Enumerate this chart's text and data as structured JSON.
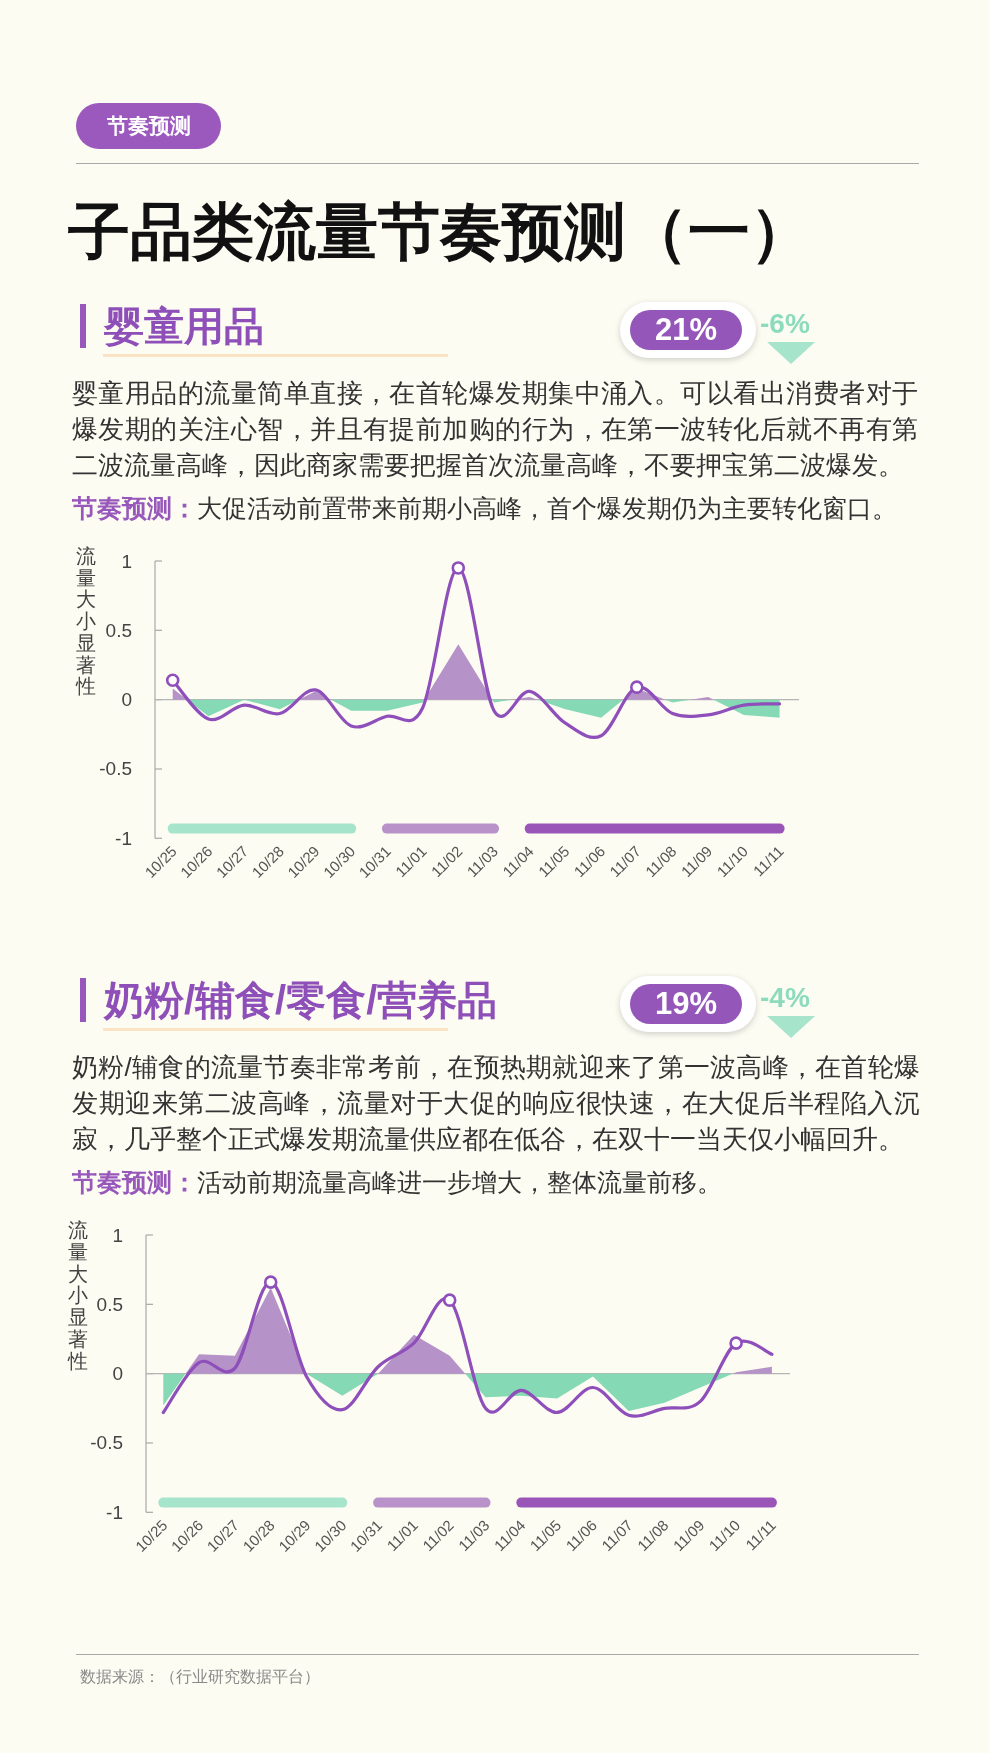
{
  "chart_data": [
    {
      "type": "other",
      "title": "子品类流量节奏预测（一）",
      "annotations": [
        "节奏预测"
      ]
    },
    {
      "type": "line",
      "title": "婴童用品",
      "subtitle": "婴童用品的流量简单直接，在首轮爆发期集中涌入。可以看出消费者对于爆发期的关注心智，并且有提前加购的行为，在第一波转化后就不再有第二波流量高峰，因此商家需要把握首次流量高峰，不要押宝第二波爆发。",
      "ylabel": "流量大小显著性",
      "annotations": [
        "21%",
        "-6%",
        "节奏预测：",
        "大促活动前置带来前期小高峰，首个爆发期仍为主要转化窗口。"
      ],
      "categories": [
        "10/25",
        "10/26",
        "10/27",
        "10/28",
        "10/29",
        "10/30",
        "10/31",
        "11/01",
        "11/02",
        "11/03",
        "11/04",
        "11/05",
        "11/06",
        "11/07",
        "11/08",
        "11/09",
        "11/10",
        "11/11"
      ],
      "series": [
        {
          "type": "area",
          "colors": [
            "#b592c8",
            "#85d9b5",
            "#85d9b5",
            "#85d9b5",
            "#b592c8",
            "#85d9b5",
            "#85d9b5",
            "#85d9b5",
            "#b592c8",
            "#85d9b5",
            "#b592c8",
            "#85d9b5",
            "#85d9b5",
            "#b592c8",
            "#85d9b5",
            "#b592c8",
            "#85d9b5",
            "#85d9b5"
          ],
          "values": [
            0.08,
            -0.12,
            0,
            -0.07,
            0.06,
            -0.08,
            -0.08,
            -0.02,
            0.4,
            -0.02,
            0.02,
            -0.07,
            -0.13,
            0.08,
            -0.02,
            0.02,
            -0.11,
            -0.13
          ]
        },
        {
          "type": "line",
          "color": "#8f4fba",
          "values": [
            0.14,
            -0.14,
            -0.04,
            -0.1,
            0.07,
            -0.19,
            -0.12,
            -0.06,
            0.95,
            -0.08,
            0.06,
            -0.17,
            -0.26,
            0.09,
            -0.1,
            -0.11,
            -0.04,
            -0.03
          ]
        },
        {
          "type": "scatter",
          "color": "#8f4fba",
          "marker": "circle",
          "x": [
            "10/25",
            "11/02",
            "11/07"
          ],
          "values": [
            0.14,
            0.95,
            0.09
          ]
        },
        {
          "type": "step",
          "color": "#a6e4cb",
          "x": [
            "10/25",
            "10/26",
            "10/27",
            "10/28",
            "10/29",
            "10/30"
          ],
          "values": [
            -0.93,
            -0.93,
            -0.93,
            -0.93,
            -0.93,
            -0.93
          ]
        },
        {
          "type": "step",
          "color": "#b892c9",
          "x": [
            "10/31",
            "11/01",
            "11/02",
            "11/03"
          ],
          "values": [
            -0.93,
            -0.93,
            -0.93,
            -0.93
          ]
        },
        {
          "type": "step",
          "color": "#9a55b8",
          "x": [
            "11/04",
            "11/05",
            "11/06",
            "11/07",
            "11/08",
            "11/09",
            "11/10",
            "11/11"
          ],
          "values": [
            -0.93,
            -0.93,
            -0.93,
            -0.93,
            -0.93,
            -0.93,
            -0.93,
            -0.93
          ]
        }
      ],
      "ylim": [
        -1,
        1
      ],
      "yticks": [
        -1,
        -0.5,
        0,
        0.5,
        1
      ]
    },
    {
      "type": "line",
      "title": "奶粉/辅食/零食/营养品",
      "subtitle": "奶粉/辅食的流量节奏非常考前，在预热期就迎来了第一波高峰，在首轮爆发期迎来第二波高峰，流量对于大促的响应很快速，在大促后半程陷入沉寂，几乎整个正式爆发期流量供应都在低谷，在双十一当天仅小幅回升。",
      "ylabel": "流量大小显著性",
      "annotations": [
        "19%",
        "-4%",
        "节奏预测：",
        "活动前期流量高峰进一步增大，整体流量前移。"
      ],
      "categories": [
        "10/25",
        "10/26",
        "10/27",
        "10/28",
        "10/29",
        "10/30",
        "10/31",
        "11/01",
        "11/02",
        "11/03",
        "11/04",
        "11/05",
        "11/06",
        "11/07",
        "11/08",
        "11/09",
        "11/10",
        "11/11"
      ],
      "series": [
        {
          "type": "area",
          "colors": [
            "#85d9b5",
            "#b592c8",
            "#b592c8",
            "#b592c8",
            "#b592c8",
            "#85d9b5",
            "#85d9b5",
            "#b592c8",
            "#b592c8",
            "#85d9b5",
            "#85d9b5",
            "#85d9b5",
            "#85d9b5",
            "#85d9b5",
            "#85d9b5",
            "#85d9b5",
            "#b592c8",
            "#b592c8"
          ],
          "values": [
            -0.23,
            0.14,
            0.13,
            0.62,
            0,
            -0.16,
            0,
            0.28,
            0.13,
            -0.17,
            -0.16,
            -0.18,
            -0.02,
            -0.27,
            -0.21,
            -0.1,
            0.01,
            0.05
          ]
        },
        {
          "type": "line",
          "color": "#8f4fba",
          "values": [
            -0.28,
            0.08,
            0.04,
            0.66,
            -0.02,
            -0.26,
            0.05,
            0.22,
            0.53,
            -0.25,
            -0.12,
            -0.28,
            -0.1,
            -0.3,
            -0.25,
            -0.2,
            0.22,
            0.14
          ]
        },
        {
          "type": "scatter",
          "color": "#8f4fba",
          "marker": "circle",
          "x": [
            "10/28",
            "11/02",
            "11/10"
          ],
          "values": [
            0.66,
            0.53,
            0.22
          ]
        },
        {
          "type": "step",
          "color": "#a6e4cb",
          "x": [
            "10/25",
            "10/26",
            "10/27",
            "10/28",
            "10/29",
            "10/30"
          ],
          "values": [
            -0.93,
            -0.93,
            -0.93,
            -0.93,
            -0.93,
            -0.93
          ]
        },
        {
          "type": "step",
          "color": "#b892c9",
          "x": [
            "10/31",
            "11/01",
            "11/02",
            "11/03"
          ],
          "values": [
            -0.93,
            -0.93,
            -0.93,
            -0.93
          ]
        },
        {
          "type": "step",
          "color": "#9a55b8",
          "x": [
            "11/04",
            "11/05",
            "11/06",
            "11/07",
            "11/08",
            "11/09",
            "11/10",
            "11/11"
          ],
          "values": [
            -0.93,
            -0.93,
            -0.93,
            -0.93,
            -0.93,
            -0.93,
            -0.93,
            -0.93
          ]
        }
      ],
      "ylim": [
        -1,
        1
      ],
      "yticks": [
        -1,
        -0.5,
        0,
        0.5,
        1
      ]
    },
    {
      "type": "other",
      "annotations": [
        "数据来源：（行业研究数据平台）"
      ]
    }
  ]
}
